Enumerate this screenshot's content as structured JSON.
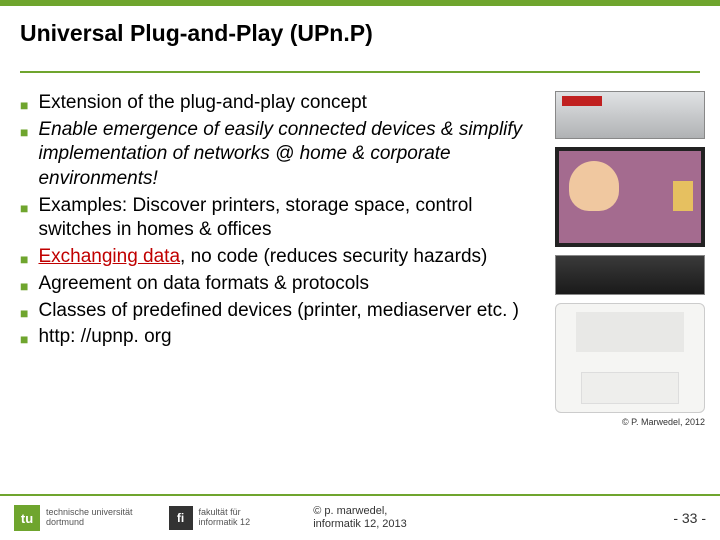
{
  "title": "Universal Plug-and-Play (UPn.P)",
  "bullets": [
    {
      "text": "Extension of the plug-and-play concept",
      "style": "plain"
    },
    {
      "text": "Enable emergence of easily connected devices & simplify implementation of networks @ home & corporate environments!",
      "style": "italic"
    },
    {
      "text": "Examples: Discover printers, storage space, control switches in homes & offices",
      "style": "plain"
    },
    {
      "text_pre": "Exchanging data",
      "text_post": ", no code (reduces security hazards)",
      "style": "highlight-underline"
    },
    {
      "text": "Agreement on data formats & protocols",
      "style": "plain"
    },
    {
      "text": "Classes of predefined devices (printer, mediaserver etc. )",
      "style": "plain"
    },
    {
      "text": "http: //upnp. org",
      "style": "plain"
    }
  ],
  "image_caption": "© P. Marwedel, 2012",
  "footer": {
    "tu_label": "tu",
    "tu_text1": "technische universität",
    "tu_text2": "dortmund",
    "fi_label": "fi",
    "fi_text1": "fakultät für",
    "fi_text2": "informatik 12",
    "center1": "©  p. marwedel,",
    "center2": "informatik 12,  2013",
    "page": "-  33 -"
  },
  "colors": {
    "accent": "#6fa52e",
    "highlight": "#c00000"
  }
}
